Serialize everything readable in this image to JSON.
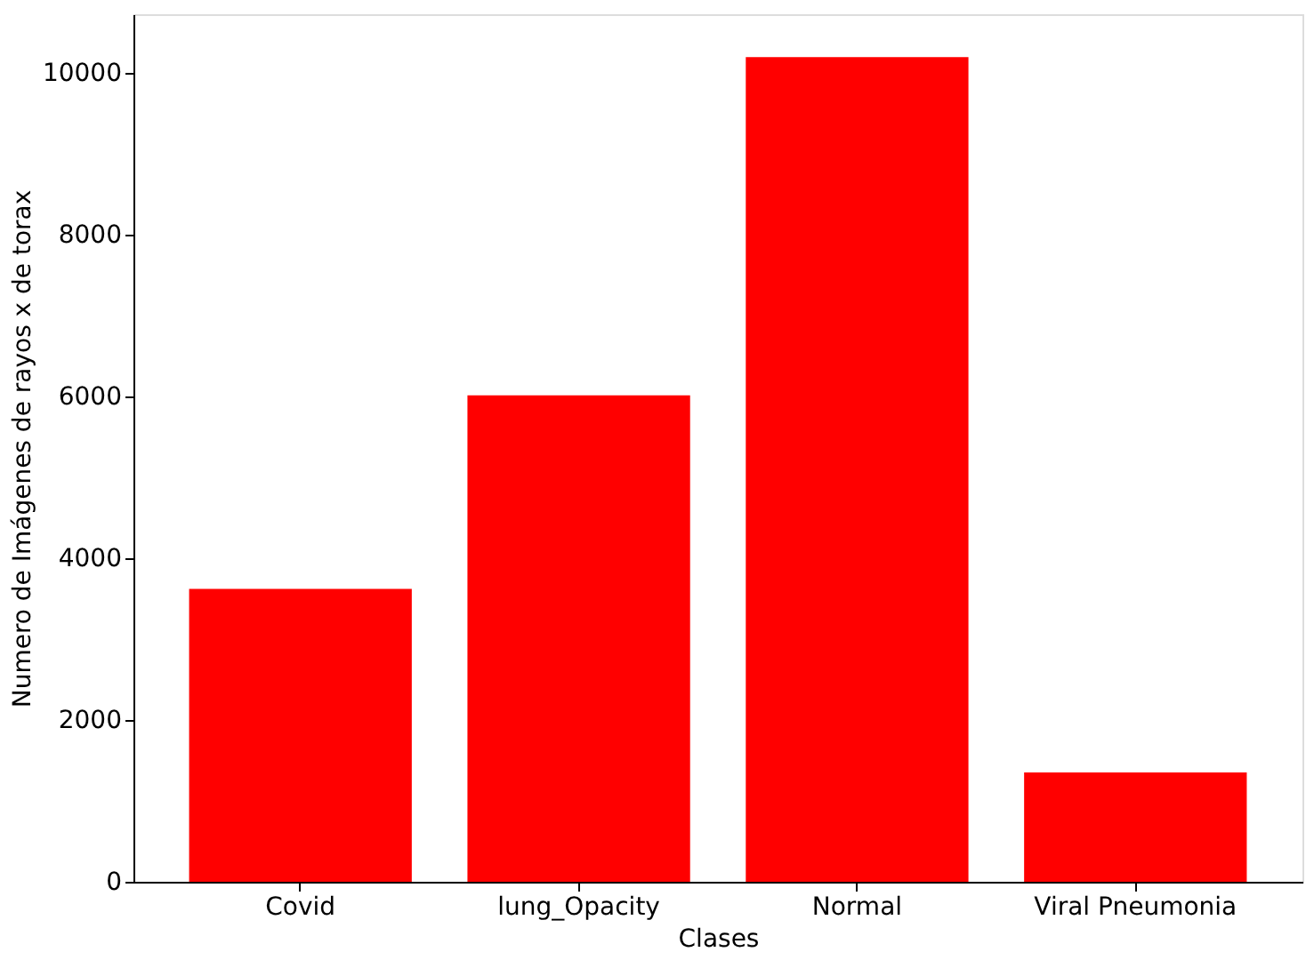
{
  "chart_data": {
    "type": "bar",
    "xlabel": "Clases",
    "ylabel": "Numero de Imágenes de rayos x de torax",
    "categories": [
      "Covid",
      "lung_Opacity",
      "Normal",
      "Viral Pneumonia"
    ],
    "values": [
      3620,
      6010,
      10190,
      1350
    ],
    "color": "#ff0000",
    "ylim": [
      0,
      10720
    ],
    "yticks": [
      0,
      2000,
      4000,
      6000,
      8000,
      10000
    ],
    "grid": false
  }
}
